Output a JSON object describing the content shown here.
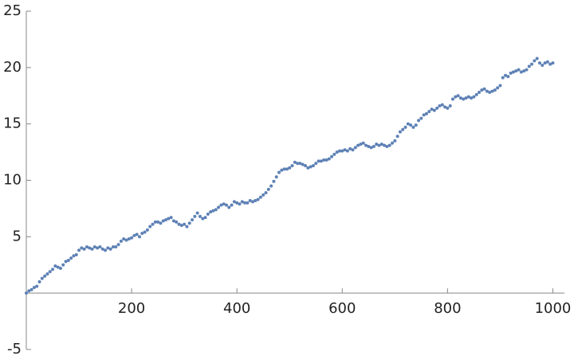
{
  "chart_data": {
    "type": "scatter",
    "color": "#5e81b5",
    "xlim": [
      0,
      1022
    ],
    "ylim": [
      -5,
      25
    ],
    "xticks": [
      200,
      400,
      600,
      800,
      1000
    ],
    "yticks": [
      -5,
      5,
      10,
      15,
      20,
      25
    ],
    "x": [
      0,
      5,
      10,
      15,
      20,
      25,
      30,
      35,
      40,
      45,
      50,
      55,
      60,
      65,
      70,
      75,
      80,
      85,
      90,
      95,
      100,
      105,
      110,
      115,
      120,
      125,
      130,
      135,
      140,
      145,
      150,
      155,
      160,
      165,
      170,
      175,
      180,
      185,
      190,
      195,
      200,
      205,
      210,
      215,
      220,
      225,
      230,
      235,
      240,
      245,
      250,
      255,
      260,
      265,
      270,
      275,
      280,
      285,
      290,
      295,
      300,
      305,
      310,
      315,
      320,
      325,
      330,
      335,
      340,
      345,
      350,
      355,
      360,
      365,
      370,
      375,
      380,
      385,
      390,
      395,
      400,
      405,
      410,
      415,
      420,
      425,
      430,
      435,
      440,
      445,
      450,
      455,
      460,
      465,
      470,
      475,
      480,
      485,
      490,
      495,
      500,
      505,
      510,
      515,
      520,
      525,
      530,
      535,
      540,
      545,
      550,
      555,
      560,
      565,
      570,
      575,
      580,
      585,
      590,
      595,
      600,
      605,
      610,
      615,
      620,
      625,
      630,
      635,
      640,
      645,
      650,
      655,
      660,
      665,
      670,
      675,
      680,
      685,
      690,
      695,
      700,
      705,
      710,
      715,
      720,
      725,
      730,
      735,
      740,
      745,
      750,
      755,
      760,
      765,
      770,
      775,
      780,
      785,
      790,
      795,
      800,
      805,
      810,
      815,
      820,
      825,
      830,
      835,
      840,
      845,
      850,
      855,
      860,
      865,
      870,
      875,
      880,
      885,
      890,
      895,
      900,
      905,
      910,
      915,
      920,
      925,
      930,
      935,
      940,
      945,
      950,
      955,
      960,
      965,
      970,
      975,
      980,
      985,
      990,
      995,
      1000
    ],
    "values": [
      0.0,
      0.2,
      0.3,
      0.5,
      0.6,
      1.0,
      1.3,
      1.5,
      1.7,
      1.9,
      2.1,
      2.4,
      2.3,
      2.2,
      2.5,
      2.8,
      2.9,
      3.1,
      3.3,
      3.4,
      3.8,
      4.0,
      3.9,
      4.1,
      4.0,
      3.9,
      4.1,
      4.0,
      4.1,
      3.9,
      3.8,
      4.0,
      3.9,
      4.1,
      4.1,
      4.3,
      4.6,
      4.8,
      4.7,
      4.8,
      4.9,
      5.1,
      5.2,
      5.0,
      5.3,
      5.4,
      5.6,
      5.9,
      6.1,
      6.3,
      6.3,
      6.2,
      6.4,
      6.5,
      6.6,
      6.7,
      6.4,
      6.3,
      6.1,
      6.0,
      6.1,
      5.9,
      6.2,
      6.5,
      6.8,
      7.1,
      6.8,
      6.6,
      6.7,
      7.0,
      7.2,
      7.3,
      7.4,
      7.6,
      7.8,
      7.9,
      7.8,
      7.6,
      7.8,
      8.1,
      8.0,
      7.9,
      8.1,
      8.0,
      8.0,
      8.2,
      8.1,
      8.2,
      8.3,
      8.5,
      8.7,
      8.9,
      9.2,
      9.5,
      9.9,
      10.3,
      10.7,
      10.9,
      11.0,
      11.0,
      11.1,
      11.3,
      11.6,
      11.5,
      11.5,
      11.4,
      11.3,
      11.1,
      11.2,
      11.3,
      11.5,
      11.7,
      11.7,
      11.8,
      11.8,
      11.9,
      12.1,
      12.3,
      12.5,
      12.6,
      12.6,
      12.7,
      12.6,
      12.8,
      12.7,
      12.9,
      13.1,
      13.2,
      13.3,
      13.1,
      13.0,
      12.9,
      13.0,
      13.2,
      13.1,
      13.2,
      13.1,
      13.0,
      13.1,
      13.3,
      13.5,
      13.9,
      14.3,
      14.5,
      14.7,
      15.0,
      14.9,
      14.7,
      14.9,
      15.3,
      15.5,
      15.8,
      15.9,
      16.1,
      16.3,
      16.2,
      16.4,
      16.6,
      16.7,
      16.5,
      16.4,
      16.6,
      17.2,
      17.4,
      17.5,
      17.3,
      17.2,
      17.3,
      17.4,
      17.3,
      17.4,
      17.6,
      17.8,
      18.0,
      18.1,
      17.9,
      17.8,
      17.9,
      18.0,
      18.2,
      18.4,
      19.1,
      19.3,
      19.2,
      19.5,
      19.6,
      19.7,
      19.8,
      19.6,
      19.7,
      19.8,
      20.1,
      20.3,
      20.6,
      20.8,
      20.4,
      20.2,
      20.4,
      20.5,
      20.3,
      20.4
    ]
  }
}
